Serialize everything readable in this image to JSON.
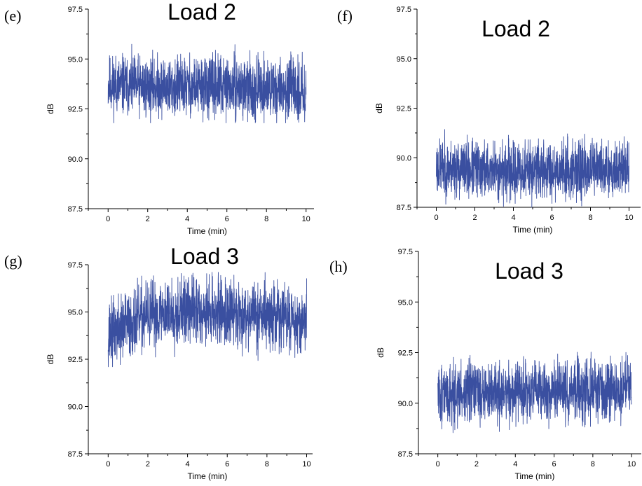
{
  "colors": {
    "series": "#3a4fa0",
    "axis": "#000000"
  },
  "chart_data": [
    {
      "panel": "(e)",
      "type": "line",
      "title": "Load 2",
      "xlabel": "Time (min)",
      "ylabel": "dB",
      "xlim": [
        -1,
        10.4
      ],
      "ylim": [
        87.5,
        97.5
      ],
      "xticks": [
        "0",
        "2",
        "4",
        "6",
        "8",
        "10"
      ],
      "yticks": [
        "87.5",
        "90.0",
        "92.5",
        "95.0",
        "97.5"
      ],
      "series": [
        {
          "x_range": [
            0,
            10
          ],
          "y_mean": [
            93.7,
            93.6,
            93.6,
            93.6,
            93.5,
            93.4
          ],
          "y_min": 91.8,
          "y_max": 96.0
        }
      ]
    },
    {
      "panel": "(f)",
      "type": "line",
      "title": "Load 2",
      "xlabel": "Time (min)",
      "ylabel": "dB",
      "xlim": [
        -1,
        10.6
      ],
      "ylim": [
        87.5,
        97.5
      ],
      "xticks": [
        "0",
        "2",
        "4",
        "6",
        "8",
        "10"
      ],
      "yticks": [
        "87.5",
        "90.0",
        "92.5",
        "95.0",
        "97.5"
      ],
      "series": [
        {
          "x_range": [
            0,
            10
          ],
          "y_mean": [
            89.5,
            89.4,
            89.3,
            89.4,
            89.4,
            89.5
          ],
          "y_min": 87.5,
          "y_max": 91.5
        }
      ]
    },
    {
      "panel": "(g)",
      "type": "line",
      "title": "Load 3",
      "xlabel": "Time (min)",
      "ylabel": "dB",
      "xlim": [
        -1,
        10.3
      ],
      "ylim": [
        87.5,
        97.5
      ],
      "xticks": [
        "0",
        "2",
        "4",
        "6",
        "8",
        "10"
      ],
      "yticks": [
        "87.5",
        "90.0",
        "92.5",
        "95.0",
        "97.5"
      ],
      "series": [
        {
          "x_range": [
            0,
            10
          ],
          "y_mean": [
            93.8,
            94.8,
            95.1,
            95.0,
            94.8,
            94.5
          ],
          "y_min": 92.1,
          "y_max": 97.1
        }
      ]
    },
    {
      "panel": "(h)",
      "type": "line",
      "title": "Load 3",
      "xlabel": "Time (min)",
      "ylabel": "dB",
      "xlim": [
        -1,
        10.5
      ],
      "ylim": [
        87.5,
        97.5
      ],
      "xticks": [
        "0",
        "2",
        "4",
        "6",
        "8",
        "10"
      ],
      "yticks": [
        "87.5",
        "90.0",
        "92.5",
        "95.0",
        "97.5"
      ],
      "series": [
        {
          "x_range": [
            0,
            10
          ],
          "y_mean": [
            90.4,
            90.5,
            90.5,
            90.6,
            90.6,
            90.7
          ],
          "y_min": 88.5,
          "y_max": 92.7
        }
      ]
    }
  ]
}
